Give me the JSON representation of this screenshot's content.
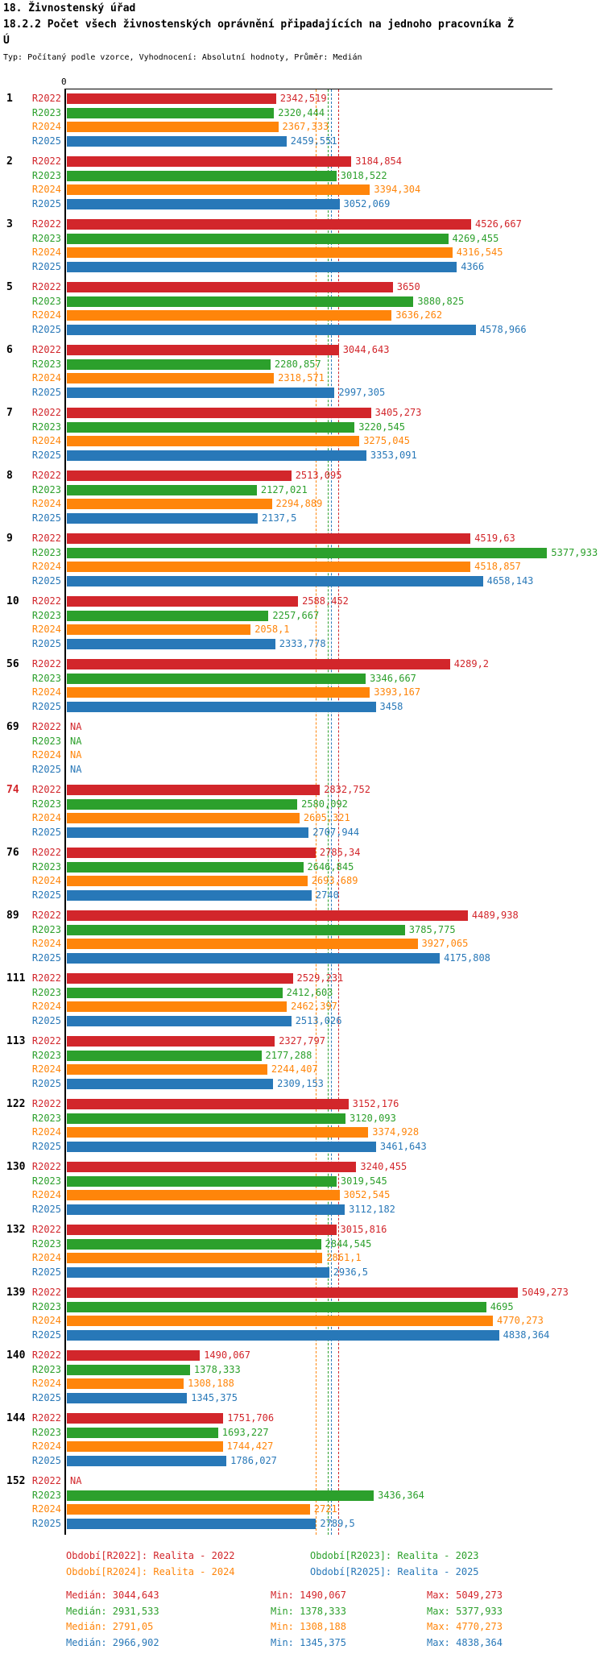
{
  "header": {
    "title_line1": "18. Živnostenský úřad",
    "title_line2": "18.2.2 Počet všech živnostenských oprávnění připadajících na jednoho pracovníka Ž",
    "title_line3": "Ú",
    "subtitle": "Typ: Počítaný podle vzorce, Vyhodnocení: Absolutní hodnoty, Průměr: Medián"
  },
  "colors": {
    "r2022": "#d2262b",
    "r2023": "#2ca02c",
    "r2024": "#ff850a",
    "r2025": "#2878b8",
    "axis": "#000000"
  },
  "chart_data": {
    "type": "bar",
    "orientation": "horizontal",
    "axis_origin_label": "0",
    "x_axis_range": [
      0,
      5444
    ],
    "grid": false,
    "series_keys": [
      "R2022",
      "R2023",
      "R2024",
      "R2025"
    ],
    "median_lines": [
      {
        "series": "R2022",
        "value": 3044.643
      },
      {
        "series": "R2023",
        "value": 2931.533
      },
      {
        "series": "R2024",
        "value": 2791.05
      },
      {
        "series": "R2025",
        "value": 2966.902
      }
    ],
    "groups": [
      {
        "id": "1",
        "emphasis": false,
        "bars": [
          {
            "series": "R2022",
            "value": 2342.519,
            "label": "2342,519"
          },
          {
            "series": "R2023",
            "value": 2320.444,
            "label": "2320,444"
          },
          {
            "series": "R2024",
            "value": 2367.333,
            "label": "2367,333"
          },
          {
            "series": "R2025",
            "value": 2459.551,
            "label": "2459,551"
          }
        ]
      },
      {
        "id": "2",
        "emphasis": false,
        "bars": [
          {
            "series": "R2022",
            "value": 3184.854,
            "label": "3184,854"
          },
          {
            "series": "R2023",
            "value": 3018.522,
            "label": "3018,522"
          },
          {
            "series": "R2024",
            "value": 3394.304,
            "label": "3394,304"
          },
          {
            "series": "R2025",
            "value": 3052.069,
            "label": "3052,069"
          }
        ]
      },
      {
        "id": "3",
        "emphasis": false,
        "bars": [
          {
            "series": "R2022",
            "value": 4526.667,
            "label": "4526,667"
          },
          {
            "series": "R2023",
            "value": 4269.455,
            "label": "4269,455"
          },
          {
            "series": "R2024",
            "value": 4316.545,
            "label": "4316,545"
          },
          {
            "series": "R2025",
            "value": 4366,
            "label": "4366"
          }
        ]
      },
      {
        "id": "5",
        "emphasis": false,
        "bars": [
          {
            "series": "R2022",
            "value": 3650,
            "label": "3650"
          },
          {
            "series": "R2023",
            "value": 3880.825,
            "label": "3880,825"
          },
          {
            "series": "R2024",
            "value": 3636.262,
            "label": "3636,262"
          },
          {
            "series": "R2025",
            "value": 4578.966,
            "label": "4578,966"
          }
        ]
      },
      {
        "id": "6",
        "emphasis": false,
        "bars": [
          {
            "series": "R2022",
            "value": 3044.643,
            "label": "3044,643"
          },
          {
            "series": "R2023",
            "value": 2280.857,
            "label": "2280,857"
          },
          {
            "series": "R2024",
            "value": 2318.571,
            "label": "2318,571"
          },
          {
            "series": "R2025",
            "value": 2997.305,
            "label": "2997,305"
          }
        ]
      },
      {
        "id": "7",
        "emphasis": false,
        "bars": [
          {
            "series": "R2022",
            "value": 3405.273,
            "label": "3405,273"
          },
          {
            "series": "R2023",
            "value": 3220.545,
            "label": "3220,545"
          },
          {
            "series": "R2024",
            "value": 3275.045,
            "label": "3275,045"
          },
          {
            "series": "R2025",
            "value": 3353.091,
            "label": "3353,091"
          }
        ]
      },
      {
        "id": "8",
        "emphasis": false,
        "bars": [
          {
            "series": "R2022",
            "value": 2513.095,
            "label": "2513,095"
          },
          {
            "series": "R2023",
            "value": 2127.021,
            "label": "2127,021"
          },
          {
            "series": "R2024",
            "value": 2294.889,
            "label": "2294,889"
          },
          {
            "series": "R2025",
            "value": 2137.5,
            "label": "2137,5"
          }
        ]
      },
      {
        "id": "9",
        "emphasis": false,
        "bars": [
          {
            "series": "R2022",
            "value": 4519.63,
            "label": "4519,63"
          },
          {
            "series": "R2023",
            "value": 5377.933,
            "label": "5377,933"
          },
          {
            "series": "R2024",
            "value": 4518.857,
            "label": "4518,857"
          },
          {
            "series": "R2025",
            "value": 4658.143,
            "label": "4658,143"
          }
        ]
      },
      {
        "id": "10",
        "emphasis": false,
        "bars": [
          {
            "series": "R2022",
            "value": 2588.452,
            "label": "2588,452"
          },
          {
            "series": "R2023",
            "value": 2257.667,
            "label": "2257,667"
          },
          {
            "series": "R2024",
            "value": 2058.1,
            "label": "2058,1"
          },
          {
            "series": "R2025",
            "value": 2333.778,
            "label": "2333,778"
          }
        ]
      },
      {
        "id": "56",
        "emphasis": false,
        "bars": [
          {
            "series": "R2022",
            "value": 4289.2,
            "label": "4289,2"
          },
          {
            "series": "R2023",
            "value": 3346.667,
            "label": "3346,667"
          },
          {
            "series": "R2024",
            "value": 3393.167,
            "label": "3393,167"
          },
          {
            "series": "R2025",
            "value": 3458,
            "label": "3458"
          }
        ]
      },
      {
        "id": "69",
        "emphasis": false,
        "bars": [
          {
            "series": "R2022",
            "value": null,
            "label": "NA"
          },
          {
            "series": "R2023",
            "value": null,
            "label": "NA"
          },
          {
            "series": "R2024",
            "value": null,
            "label": "NA"
          },
          {
            "series": "R2025",
            "value": null,
            "label": "NA"
          }
        ]
      },
      {
        "id": "74",
        "emphasis": true,
        "bars": [
          {
            "series": "R2022",
            "value": 2832.752,
            "label": "2832,752"
          },
          {
            "series": "R2023",
            "value": 2580.092,
            "label": "2580,092"
          },
          {
            "series": "R2024",
            "value": 2605.321,
            "label": "2605,321"
          },
          {
            "series": "R2025",
            "value": 2707.944,
            "label": "2707,944"
          }
        ]
      },
      {
        "id": "76",
        "emphasis": false,
        "bars": [
          {
            "series": "R2022",
            "value": 2785.34,
            "label": "2785,34"
          },
          {
            "series": "R2023",
            "value": 2646.845,
            "label": "2646,845"
          },
          {
            "series": "R2024",
            "value": 2693.689,
            "label": "2693,689"
          },
          {
            "series": "R2025",
            "value": 2740,
            "label": "2740"
          }
        ]
      },
      {
        "id": "89",
        "emphasis": false,
        "bars": [
          {
            "series": "R2022",
            "value": 4489.938,
            "label": "4489,938"
          },
          {
            "series": "R2023",
            "value": 3785.775,
            "label": "3785,775"
          },
          {
            "series": "R2024",
            "value": 3927.065,
            "label": "3927,065"
          },
          {
            "series": "R2025",
            "value": 4175.808,
            "label": "4175,808"
          }
        ]
      },
      {
        "id": "111",
        "emphasis": false,
        "bars": [
          {
            "series": "R2022",
            "value": 2529.231,
            "label": "2529,231"
          },
          {
            "series": "R2023",
            "value": 2412.603,
            "label": "2412,603"
          },
          {
            "series": "R2024",
            "value": 2462.397,
            "label": "2462,397"
          },
          {
            "series": "R2025",
            "value": 2513.026,
            "label": "2513,026"
          }
        ]
      },
      {
        "id": "113",
        "emphasis": false,
        "bars": [
          {
            "series": "R2022",
            "value": 2327.797,
            "label": "2327,797"
          },
          {
            "series": "R2023",
            "value": 2177.288,
            "label": "2177,288"
          },
          {
            "series": "R2024",
            "value": 2244.407,
            "label": "2244,407"
          },
          {
            "series": "R2025",
            "value": 2309.153,
            "label": "2309,153"
          }
        ]
      },
      {
        "id": "122",
        "emphasis": false,
        "bars": [
          {
            "series": "R2022",
            "value": 3152.176,
            "label": "3152,176"
          },
          {
            "series": "R2023",
            "value": 3120.093,
            "label": "3120,093"
          },
          {
            "series": "R2024",
            "value": 3374.928,
            "label": "3374,928"
          },
          {
            "series": "R2025",
            "value": 3461.643,
            "label": "3461,643"
          }
        ]
      },
      {
        "id": "130",
        "emphasis": false,
        "bars": [
          {
            "series": "R2022",
            "value": 3240.455,
            "label": "3240,455"
          },
          {
            "series": "R2023",
            "value": 3019.545,
            "label": "3019,545"
          },
          {
            "series": "R2024",
            "value": 3052.545,
            "label": "3052,545"
          },
          {
            "series": "R2025",
            "value": 3112.182,
            "label": "3112,182"
          }
        ]
      },
      {
        "id": "132",
        "emphasis": false,
        "bars": [
          {
            "series": "R2022",
            "value": 3015.816,
            "label": "3015,816"
          },
          {
            "series": "R2023",
            "value": 2844.545,
            "label": "2844,545"
          },
          {
            "series": "R2024",
            "value": 2861.1,
            "label": "2861,1"
          },
          {
            "series": "R2025",
            "value": 2936.5,
            "label": "2936,5"
          }
        ]
      },
      {
        "id": "139",
        "emphasis": false,
        "bars": [
          {
            "series": "R2022",
            "value": 5049.273,
            "label": "5049,273"
          },
          {
            "series": "R2023",
            "value": 4695,
            "label": "4695"
          },
          {
            "series": "R2024",
            "value": 4770.273,
            "label": "4770,273"
          },
          {
            "series": "R2025",
            "value": 4838.364,
            "label": "4838,364"
          }
        ]
      },
      {
        "id": "140",
        "emphasis": false,
        "bars": [
          {
            "series": "R2022",
            "value": 1490.067,
            "label": "1490,067"
          },
          {
            "series": "R2023",
            "value": 1378.333,
            "label": "1378,333"
          },
          {
            "series": "R2024",
            "value": 1308.188,
            "label": "1308,188"
          },
          {
            "series": "R2025",
            "value": 1345.375,
            "label": "1345,375"
          }
        ]
      },
      {
        "id": "144",
        "emphasis": false,
        "bars": [
          {
            "series": "R2022",
            "value": 1751.706,
            "label": "1751,706"
          },
          {
            "series": "R2023",
            "value": 1693.227,
            "label": "1693,227"
          },
          {
            "series": "R2024",
            "value": 1744.427,
            "label": "1744,427"
          },
          {
            "series": "R2025",
            "value": 1786.027,
            "label": "1786,027"
          }
        ]
      },
      {
        "id": "152",
        "emphasis": false,
        "bars": [
          {
            "series": "R2022",
            "value": null,
            "label": "NA"
          },
          {
            "series": "R2023",
            "value": 3436.364,
            "label": "3436,364"
          },
          {
            "series": "R2024",
            "value": 2721,
            "label": "2721"
          },
          {
            "series": "R2025",
            "value": 2789.5,
            "label": "2789,5"
          }
        ]
      }
    ]
  },
  "legend": {
    "items": [
      {
        "text": "Období[R2022]: Realita - 2022",
        "series": "R2022"
      },
      {
        "text": "Období[R2023]: Realita - 2023",
        "series": "R2023"
      },
      {
        "text": "Období[R2024]: Realita - 2024",
        "series": "R2024"
      },
      {
        "text": "Období[R2025]: Realita - 2025",
        "series": "R2025"
      }
    ]
  },
  "stats": {
    "rows": [
      {
        "series": "R2022",
        "median": "Medián: 3044,643",
        "min": "Min: 1490,067",
        "max": "Max: 5049,273"
      },
      {
        "series": "R2023",
        "median": "Medián: 2931,533",
        "min": "Min: 1378,333",
        "max": "Max: 5377,933"
      },
      {
        "series": "R2024",
        "median": "Medián: 2791,05",
        "min": "Min: 1308,188",
        "max": "Max: 4770,273"
      },
      {
        "series": "R2025",
        "median": "Medián: 2966,902",
        "min": "Min: 1345,375",
        "max": "Max: 4838,364"
      }
    ]
  }
}
